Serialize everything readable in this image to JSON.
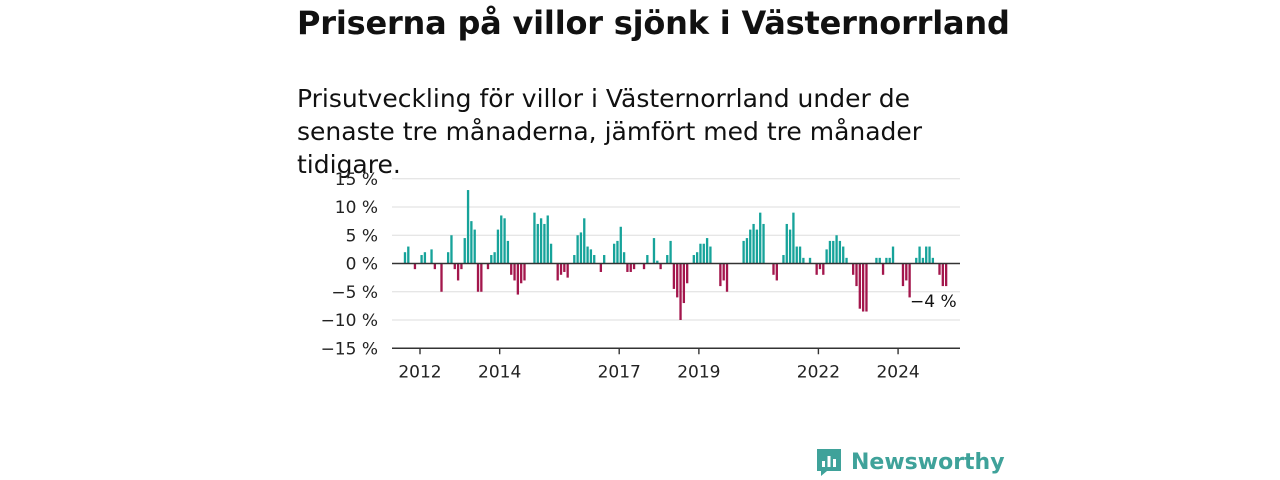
{
  "title": "Priserna på villor sjönk i Västernorrland",
  "subtitle": "Prisutveckling för villor i Västernorrland under de senaste tre månaderna, jämfört med tre månader tidigare.",
  "brand": {
    "name": "Newsworthy"
  },
  "colors": {
    "positive": "#16a39a",
    "negative": "#a3164c",
    "grid": "#dddddd",
    "axis": "#333333"
  },
  "chart_data": {
    "type": "bar",
    "start": "2012-01",
    "interval": "month",
    "ylim": [
      -15,
      15
    ],
    "yticks": [
      15,
      10,
      5,
      0,
      -5,
      -10,
      -15
    ],
    "ytick_labels": [
      "15 %",
      "10 %",
      "5 %",
      "0 %",
      "−5 %",
      "−10 %",
      "−15 %"
    ],
    "xticks": [
      2012,
      2014,
      2017,
      2019,
      2022,
      2024
    ],
    "grid": true,
    "annotation": "−4 %",
    "values": [
      0,
      2,
      3,
      0,
      -1,
      0,
      1.5,
      2,
      0,
      2.5,
      -1,
      0,
      -5,
      0,
      2,
      5,
      -1,
      -3,
      -1,
      4.5,
      13,
      7.5,
      6,
      -5,
      -5,
      0,
      -1,
      1.5,
      2,
      6,
      8.5,
      8,
      4,
      -2,
      -3,
      -5.5,
      -3.5,
      -3,
      0,
      0,
      9,
      7,
      8,
      7,
      8.5,
      3.5,
      0,
      -3,
      -2,
      -1.5,
      -2.5,
      0,
      1.5,
      5,
      5.5,
      8,
      3,
      2.5,
      1.5,
      0,
      -1.5,
      1.5,
      0,
      0,
      3.5,
      4,
      6.5,
      2,
      -1.5,
      -1.5,
      -1,
      0,
      0,
      -1,
      1.5,
      0,
      4.5,
      0.5,
      -1,
      0,
      1.5,
      4,
      -4.5,
      -6,
      -10,
      -7,
      -3.5,
      0,
      1.5,
      2,
      3.5,
      3.5,
      4.5,
      3,
      0,
      0,
      -4,
      -3,
      -5,
      0,
      0,
      0,
      0,
      4,
      4.5,
      6,
      7,
      6,
      9,
      7,
      0,
      0,
      -2,
      -3,
      0,
      1.5,
      7,
      6,
      9,
      3,
      3,
      1,
      0,
      1,
      0,
      -2,
      -1,
      -2,
      2.5,
      4,
      4,
      5,
      4,
      3,
      1,
      0,
      -2,
      -4,
      -8,
      -8.5,
      -8.5,
      0,
      0,
      1,
      1,
      -2,
      1,
      1,
      3,
      0,
      0,
      -4,
      -3,
      -6,
      0,
      1,
      3,
      1,
      3,
      3,
      1,
      0,
      -2,
      -4,
      -4
    ]
  }
}
